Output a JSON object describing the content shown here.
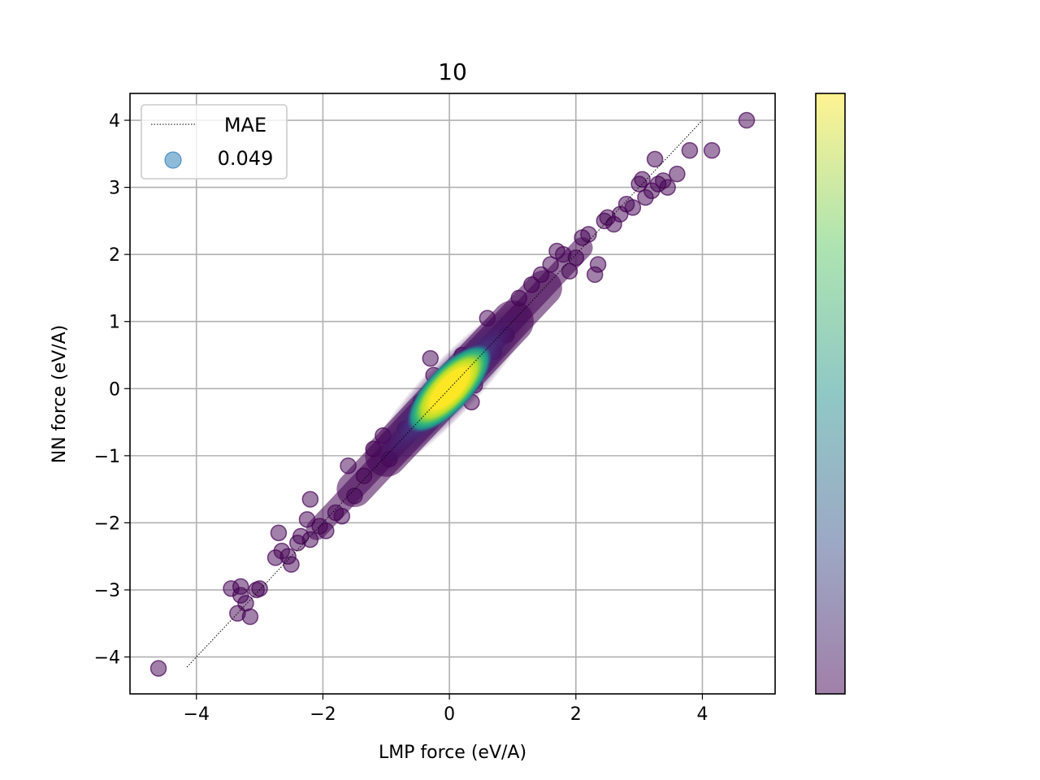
{
  "chart_data": {
    "type": "scatter",
    "title": "10",
    "xlabel": "LMP force (eV/A)",
    "ylabel": "NN force (eV/A)",
    "xlim": [
      -5.05,
      5.15
    ],
    "ylim": [
      -4.55,
      4.4
    ],
    "xticks": [
      -4,
      -2,
      0,
      2,
      4
    ],
    "yticks": [
      -4,
      -3,
      -2,
      -1,
      0,
      1,
      2,
      3,
      4
    ],
    "xtick_labels": [
      "−4",
      "−2",
      "0",
      "2",
      "4"
    ],
    "ytick_labels": [
      "−4",
      "−3",
      "−2",
      "−1",
      "0",
      "1",
      "2",
      "3",
      "4"
    ],
    "grid": true,
    "legend": {
      "placement": "top-left",
      "entries": [
        {
          "label": "MAE",
          "style": "dotted-line",
          "color": "#000000"
        },
        {
          "label": "0.049",
          "style": "marker",
          "color": "#1f77b4"
        }
      ]
    },
    "reference_line": {
      "x": [
        -4.15,
        4.0
      ],
      "y": [
        -4.15,
        4.0
      ],
      "style": "dotted",
      "color": "#000000"
    },
    "colormap": "viridis",
    "colorbar": true,
    "point_alpha": 0.5,
    "outlier_points": [
      [
        -4.6,
        -4.17
      ],
      [
        -3.35,
        -3.35
      ],
      [
        -3.3,
        -3.08
      ],
      [
        -3.22,
        -3.2
      ],
      [
        -3.45,
        -2.98
      ],
      [
        -3.3,
        -2.95
      ],
      [
        -3.15,
        -3.4
      ],
      [
        -3.05,
        -3.0
      ],
      [
        -3.0,
        -2.98
      ],
      [
        -2.75,
        -2.52
      ],
      [
        -2.65,
        -2.42
      ],
      [
        -2.7,
        -2.15
      ],
      [
        -2.55,
        -2.5
      ],
      [
        -2.5,
        -2.62
      ],
      [
        -2.4,
        -2.3
      ],
      [
        -2.35,
        -2.2
      ],
      [
        -2.2,
        -2.25
      ],
      [
        -2.2,
        -1.65
      ],
      [
        -2.25,
        -1.95
      ],
      [
        -2.05,
        -2.05
      ],
      [
        -1.95,
        -2.12
      ],
      [
        -1.8,
        -1.85
      ],
      [
        -1.7,
        -1.9
      ],
      [
        -1.6,
        -1.15
      ],
      [
        -1.5,
        -1.6
      ],
      [
        -1.35,
        -1.3
      ],
      [
        -1.2,
        -0.9
      ],
      [
        -1.05,
        -0.7
      ],
      [
        -0.95,
        -1.05
      ],
      [
        -0.7,
        -0.6
      ],
      [
        -0.45,
        -0.2
      ],
      [
        -0.3,
        0.45
      ],
      [
        -0.25,
        0.2
      ],
      [
        0.2,
        0.5
      ],
      [
        0.4,
        0.05
      ],
      [
        0.35,
        -0.2
      ],
      [
        0.6,
        1.05
      ],
      [
        0.7,
        0.55
      ],
      [
        0.9,
        0.8
      ],
      [
        1.1,
        1.35
      ],
      [
        1.3,
        1.55
      ],
      [
        1.45,
        1.7
      ],
      [
        1.6,
        1.85
      ],
      [
        1.7,
        2.05
      ],
      [
        1.8,
        2.0
      ],
      [
        1.9,
        1.75
      ],
      [
        2.0,
        1.95
      ],
      [
        2.1,
        2.25
      ],
      [
        2.2,
        2.3
      ],
      [
        2.3,
        1.7
      ],
      [
        2.35,
        1.85
      ],
      [
        2.45,
        2.5
      ],
      [
        2.5,
        2.55
      ],
      [
        2.6,
        2.45
      ],
      [
        2.7,
        2.6
      ],
      [
        2.8,
        2.75
      ],
      [
        2.9,
        2.7
      ],
      [
        3.0,
        3.05
      ],
      [
        3.05,
        3.12
      ],
      [
        3.1,
        2.85
      ],
      [
        3.2,
        2.95
      ],
      [
        3.25,
        3.42
      ],
      [
        3.3,
        3.05
      ],
      [
        3.38,
        3.1
      ],
      [
        3.45,
        3.0
      ],
      [
        3.6,
        3.2
      ],
      [
        3.8,
        3.55
      ],
      [
        4.15,
        3.55
      ],
      [
        4.7,
        4.0
      ]
    ]
  }
}
